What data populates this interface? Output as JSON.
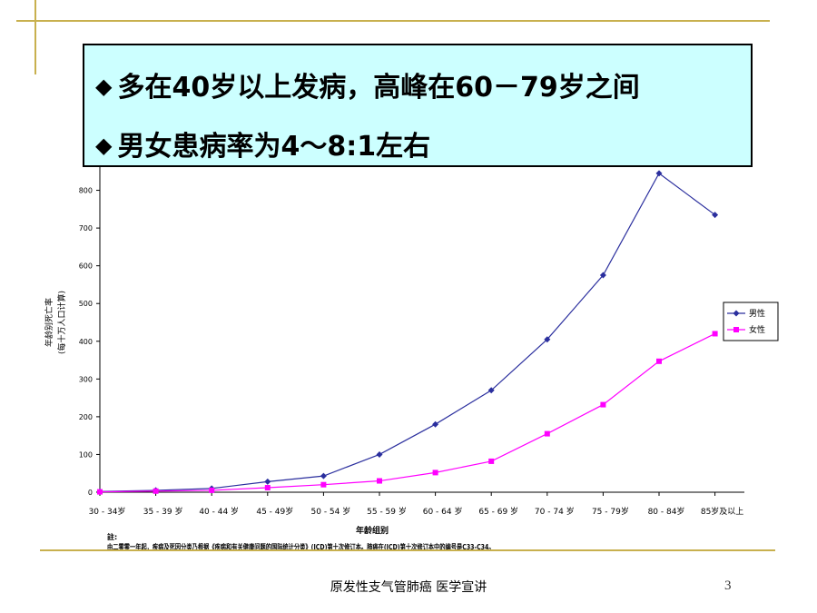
{
  "callout": {
    "bullet": "◆",
    "line1": "多在40岁以上发病，高峰在60－79岁之间",
    "line2": "男女患病率为4～8:1左右"
  },
  "notes": {
    "line1": "註:",
    "line2": "由二零零一年起，疾病及死因分类乃根据《疾病和有关健康问题的国际统计分类》(ICD)第十次修订本。肺癌在(ICD)第十次修订本中的编号是C33-C34。"
  },
  "footer": {
    "caption": "原发性支气管肺癌 医学宣讲",
    "page_number": "3"
  },
  "colors": {
    "male": "#2b2f9e",
    "female": "#ff00ff",
    "callout_bg": "#ccffff",
    "deco_line": "#c8b04e"
  },
  "chart_data": {
    "type": "line",
    "xlabel": "年龄组别",
    "ylabel": "年龄别死亡率",
    "ylabel_sub": "(每十万人口计算)",
    "ylim": [
      0,
      900
    ],
    "yticks": [
      0,
      100,
      200,
      300,
      400,
      500,
      600,
      700,
      800
    ],
    "grid": false,
    "legend_position": "right",
    "categories": [
      "30 - 34岁",
      "35 - 39 岁",
      "40 - 44 岁",
      "45 - 49岁",
      "50 - 54 岁",
      "55 - 59 岁",
      "60 - 64 岁",
      "65 - 69 岁",
      "70 - 74 岁",
      "75 - 79岁",
      "80 - 84岁",
      "85岁及以上"
    ],
    "series": [
      {
        "name": "男性",
        "marker": "diamond",
        "values": [
          2,
          5,
          10,
          28,
          43,
          100,
          180,
          270,
          405,
          575,
          845,
          735
        ]
      },
      {
        "name": "女性",
        "marker": "square",
        "values": [
          1,
          3,
          5,
          12,
          20,
          30,
          52,
          82,
          155,
          232,
          347,
          420
        ]
      }
    ]
  }
}
